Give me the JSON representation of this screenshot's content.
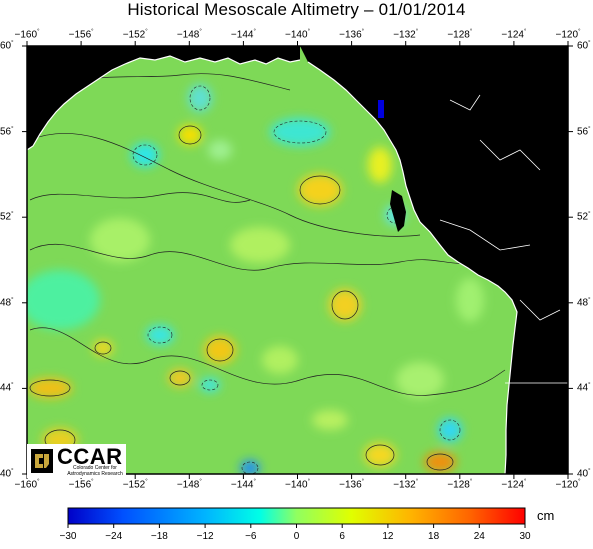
{
  "title": "Historical Mesoscale Altimetry – 01/01/2014",
  "map": {
    "lon_range": [
      -160,
      -120
    ],
    "lat_range": [
      40,
      60
    ],
    "lon_ticks": [
      "−160",
      "−156",
      "−152",
      "−148",
      "−144",
      "−140",
      "−136",
      "−132",
      "−128",
      "−124",
      "−120"
    ],
    "lat_ticks": [
      "60",
      "56",
      "52",
      "48",
      "44",
      "40"
    ],
    "degree_symbol": "°",
    "land_color": "#000000",
    "ocean_base_color": "#7ed957"
  },
  "colorbar": {
    "min": -30,
    "max": 30,
    "labels": [
      "−30",
      "−24",
      "−18",
      "−12",
      "−6",
      "0",
      "6",
      "12",
      "18",
      "24",
      "30"
    ],
    "unit": "cm",
    "colors": [
      "#0000c8",
      "#0050ff",
      "#00b4ff",
      "#00ffe6",
      "#50ff96",
      "#a0ff32",
      "#ffff00",
      "#ffb400",
      "#ff6400",
      "#ff0000"
    ]
  },
  "logo": {
    "text": "CCAR",
    "subtitle": "Colorado Center for Astrodynamics Research"
  }
}
